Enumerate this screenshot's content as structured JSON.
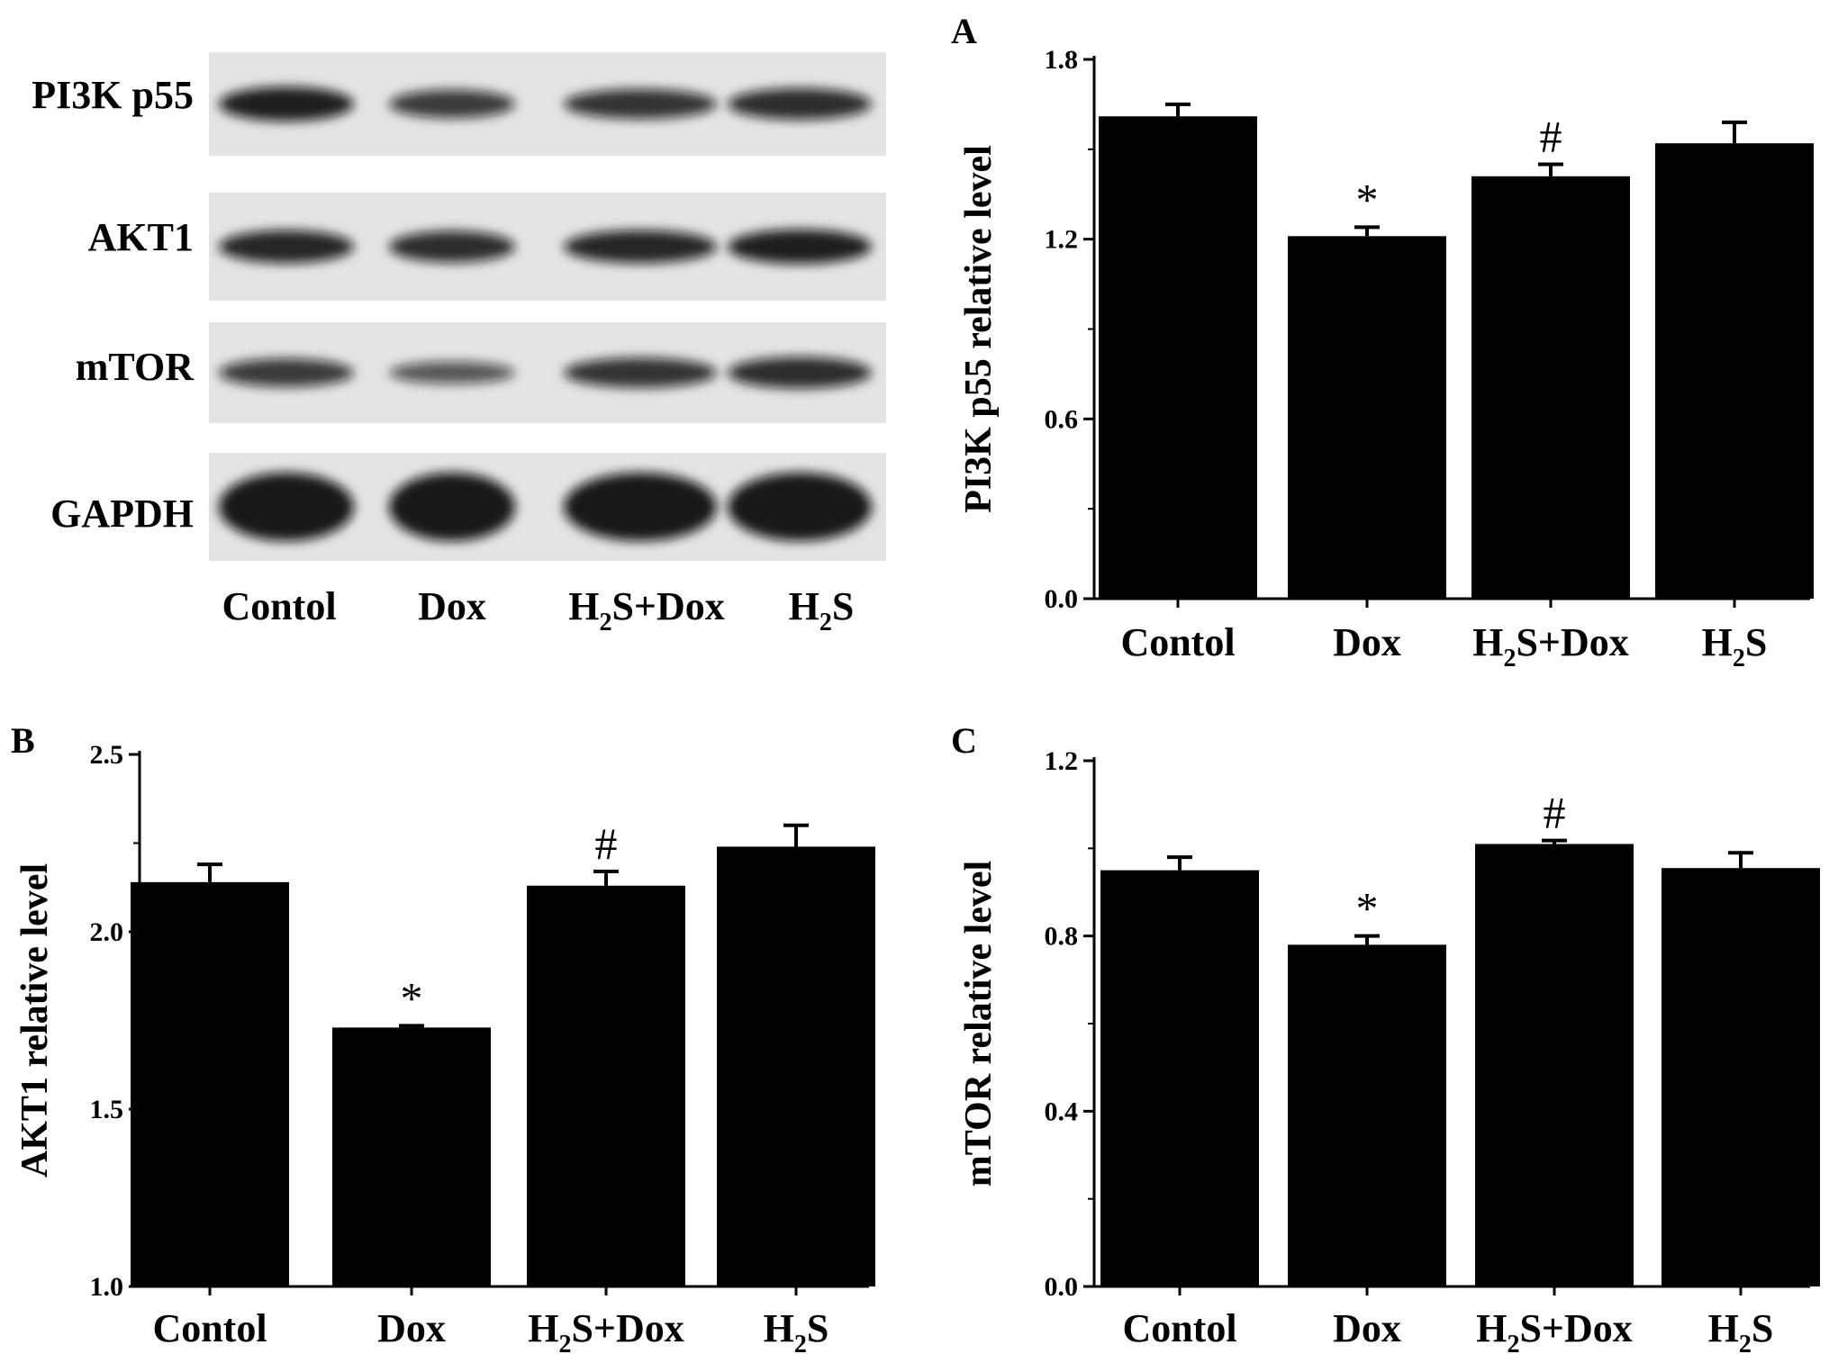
{
  "blot": {
    "rows": [
      "PI3K p55",
      "AKT1",
      "mTOR",
      "GAPDH"
    ],
    "lanes": [
      {
        "main": "Contol",
        "sub": "",
        "tail": ""
      },
      {
        "main": "Dox",
        "sub": "",
        "tail": ""
      },
      {
        "main": "H",
        "sub": "2",
        "tail": "S+Dox"
      },
      {
        "main": "H",
        "sub": "2",
        "tail": "S"
      }
    ],
    "band_intensity": [
      [
        0.95,
        0.75,
        0.8,
        0.85
      ],
      [
        0.9,
        0.85,
        0.9,
        0.95
      ],
      [
        0.75,
        0.55,
        0.8,
        0.85
      ],
      [
        1.0,
        1.0,
        1.0,
        1.0
      ]
    ],
    "colors": {
      "membrane": "#e4e4e4",
      "band": "#111111"
    }
  },
  "chart_data": [
    {
      "panel": "A",
      "type": "bar",
      "categories": [
        {
          "main": "Contol",
          "sub": "",
          "tail": ""
        },
        {
          "main": "Dox",
          "sub": "",
          "tail": ""
        },
        {
          "main": "H",
          "sub": "2",
          "tail": "S+Dox"
        },
        {
          "main": "H",
          "sub": "2",
          "tail": "S"
        }
      ],
      "values": [
        1.61,
        1.21,
        1.41,
        1.52
      ],
      "errors": [
        0.04,
        0.03,
        0.04,
        0.07
      ],
      "marks": [
        "",
        "*",
        "#",
        ""
      ],
      "ylabel": "PI3K p55 relative level",
      "ylim": [
        0.0,
        1.8
      ],
      "yticks": [
        0.0,
        0.6,
        1.2,
        1.8
      ],
      "ytick_labels": [
        "0.0",
        "0.6",
        "1.2",
        "1.8"
      ]
    },
    {
      "panel": "B",
      "type": "bar",
      "categories": [
        {
          "main": "Contol",
          "sub": "",
          "tail": ""
        },
        {
          "main": "Dox",
          "sub": "",
          "tail": ""
        },
        {
          "main": "H",
          "sub": "2",
          "tail": "S+Dox"
        },
        {
          "main": "H",
          "sub": "2",
          "tail": "S"
        }
      ],
      "values": [
        2.14,
        1.73,
        2.13,
        2.24
      ],
      "errors": [
        0.05,
        0.005,
        0.04,
        0.06
      ],
      "marks": [
        "",
        "*",
        "#",
        ""
      ],
      "ylabel": "AKT1 relative level",
      "ylim": [
        1.0,
        2.5
      ],
      "yticks": [
        1.0,
        1.5,
        2.0,
        2.5
      ],
      "ytick_labels": [
        "1.0",
        "1.5",
        "2.0",
        "2.5"
      ]
    },
    {
      "panel": "C",
      "type": "bar",
      "categories": [
        {
          "main": "Contol",
          "sub": "",
          "tail": ""
        },
        {
          "main": "Dox",
          "sub": "",
          "tail": ""
        },
        {
          "main": "H",
          "sub": "2",
          "tail": "S+Dox"
        },
        {
          "main": "H",
          "sub": "2",
          "tail": "S"
        }
      ],
      "values": [
        0.95,
        0.78,
        1.01,
        0.955
      ],
      "errors": [
        0.03,
        0.02,
        0.008,
        0.035
      ],
      "marks": [
        "",
        "*",
        "#",
        ""
      ],
      "ylabel": "mTOR relative level",
      "ylim": [
        0.0,
        1.2
      ],
      "yticks": [
        0.0,
        0.4,
        0.8,
        1.2
      ],
      "ytick_labels": [
        "0.0",
        "0.4",
        "0.8",
        "1.2"
      ]
    }
  ]
}
